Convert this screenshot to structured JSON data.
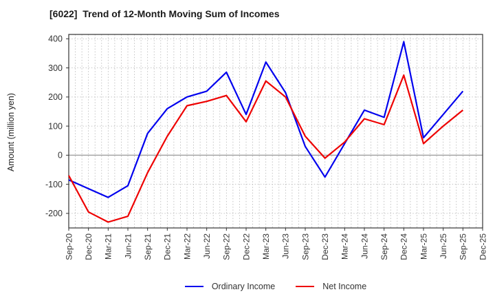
{
  "title": "[6022]  Trend of 12-Month Moving Sum of Incomes",
  "ylabel": "Amount (million yen)",
  "chart_data": {
    "type": "line",
    "title": "[6022]  Trend of 12-Month Moving Sum of Incomes",
    "xlabel": "",
    "ylabel": "Amount (million yen)",
    "categories": [
      "Sep-20",
      "Dec-20",
      "Mar-21",
      "Jun-21",
      "Sep-21",
      "Dec-21",
      "Mar-22",
      "Jun-22",
      "Sep-22",
      "Dec-22",
      "Mar-23",
      "Jun-23",
      "Sep-23",
      "Dec-23",
      "Mar-24",
      "Jun-24",
      "Sep-24",
      "Dec-24",
      "Mar-25",
      "Jun-25",
      "Sep-25",
      "Dec-25"
    ],
    "series": [
      {
        "name": "Ordinary Income",
        "color": "#0000ee",
        "values": [
          -85,
          -115,
          -145,
          -105,
          75,
          160,
          200,
          220,
          285,
          140,
          320,
          215,
          30,
          -75,
          40,
          155,
          130,
          390,
          60,
          140,
          220,
          null
        ]
      },
      {
        "name": "Net Income",
        "color": "#ee0000",
        "values": [
          -70,
          -195,
          -230,
          -210,
          -60,
          65,
          170,
          185,
          205,
          115,
          255,
          200,
          65,
          -10,
          45,
          125,
          105,
          275,
          40,
          100,
          155,
          null
        ]
      }
    ],
    "ylim": [
      -250,
      415
    ],
    "yticks": [
      -200,
      -100,
      0,
      100,
      200,
      300,
      400
    ],
    "grid": "dotted gray; vertical minor gridlines monthly (3 per quarter); solid gray line at 0",
    "legend_position": "bottom-center",
    "tick_label_color": "#333333",
    "frame_color": "#333333",
    "unit": "million yen"
  }
}
